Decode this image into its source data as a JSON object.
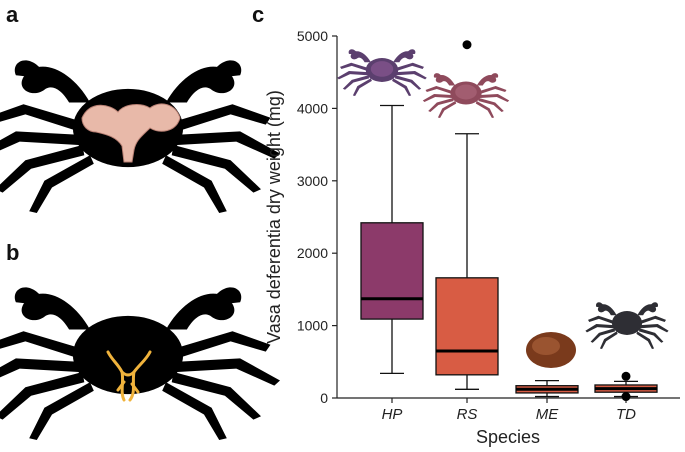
{
  "panels": {
    "a": "a",
    "b": "b",
    "c": "c"
  },
  "chart_data": {
    "type": "box",
    "xlabel": "Species",
    "ylabel": "Vasa deferentia dry weight (mg)",
    "ylim": [
      0,
      5000
    ],
    "yticks": [
      0,
      1000,
      2000,
      3000,
      4000,
      5000
    ],
    "grid": false,
    "categories": [
      "HP",
      "RS",
      "ME",
      "TD"
    ],
    "boxes": [
      {
        "category": "HP",
        "whisker_low": 340,
        "q1": 1090,
        "median": 1370,
        "q3": 2420,
        "whisker_high": 4040,
        "outliers": [],
        "color": "#8c3a6a"
      },
      {
        "category": "RS",
        "whisker_low": 120,
        "q1": 320,
        "median": 650,
        "q3": 1660,
        "whisker_high": 3650,
        "outliers": [
          4880
        ],
        "color": "#d85c44"
      },
      {
        "category": "ME",
        "whisker_low": 20,
        "q1": 70,
        "median": 120,
        "q3": 170,
        "whisker_high": 240,
        "outliers": [],
        "color": "#d85c44"
      },
      {
        "category": "TD",
        "whisker_low": 20,
        "q1": 80,
        "median": 130,
        "q3": 180,
        "whisker_high": 230,
        "outliers": [
          300,
          20
        ],
        "color": "#d85c44"
      }
    ]
  },
  "colors": {
    "silhouette": "#000000",
    "organ_a": "#e8b9a9",
    "organ_b": "#f0b33c",
    "crab_hp": "#5b3f6e",
    "crab_rs": "#8f4a5c",
    "crab_me": "#7a3a1c",
    "crab_td": "#2e2e34"
  },
  "icons": {
    "crab_a": "crab-silhouette-icon",
    "crab_b": "crab-silhouette-icon",
    "crab_hp": "purple-crab-icon",
    "crab_rs": "red-crab-icon",
    "crab_me": "brown-crab-icon",
    "crab_td": "dark-crab-icon"
  }
}
